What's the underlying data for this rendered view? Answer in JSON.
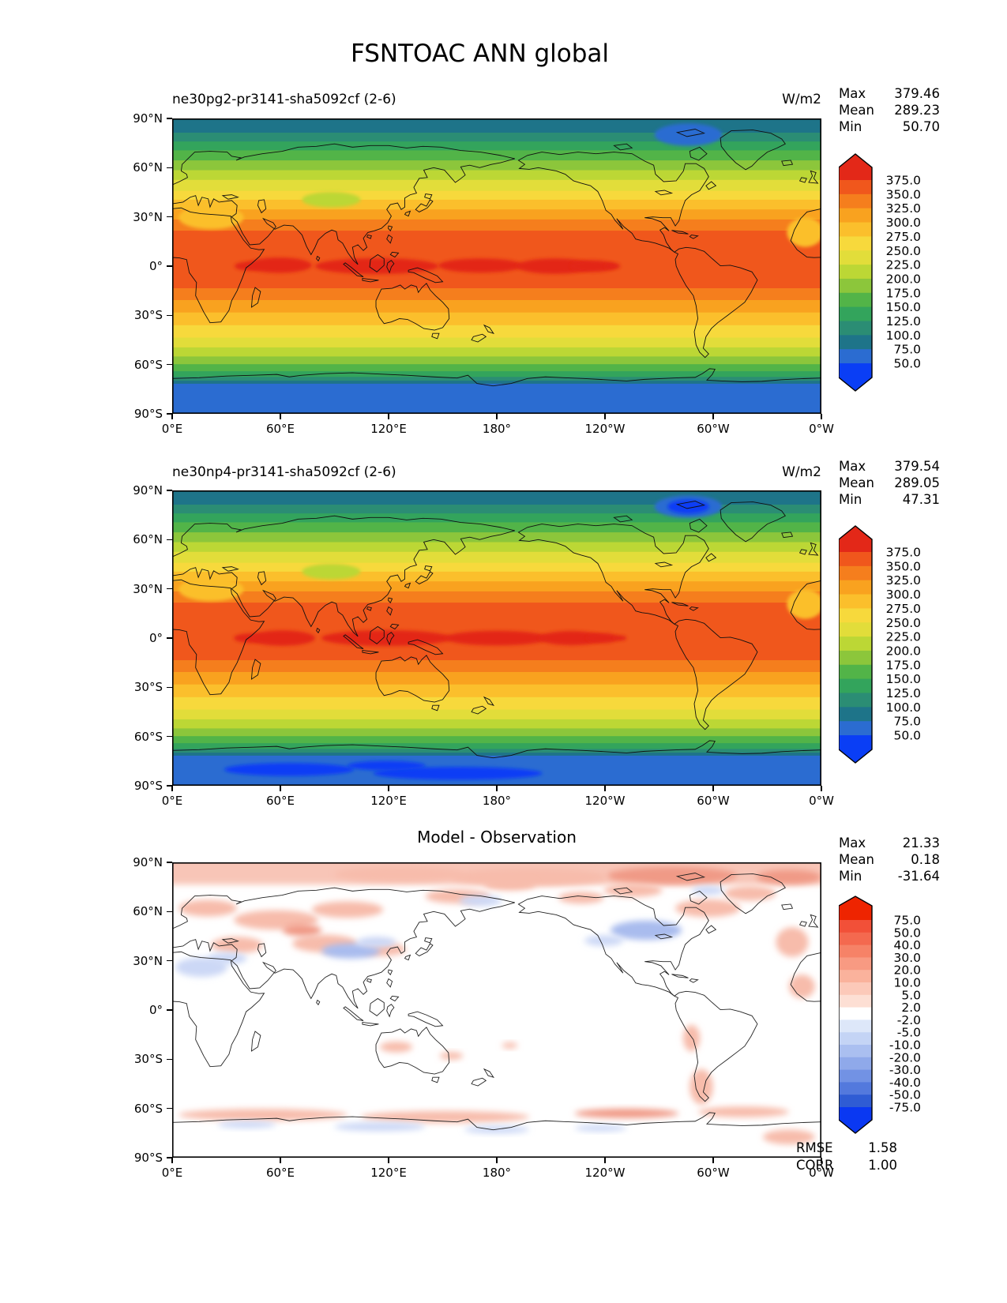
{
  "page_title": "FSNTOAC ANN global",
  "panels": [
    {
      "subtitle": "ne30pg2-pr3141-sha5092cf (2-6)",
      "units": "W/m2",
      "stats": [
        {
          "label": "Max",
          "value": "379.46"
        },
        {
          "label": "Mean",
          "value": "289.23"
        },
        {
          "label": "Min",
          "value": "50.70"
        }
      ]
    },
    {
      "subtitle": "ne30np4-pr3141-sha5092cf (2-6)",
      "units": "W/m2",
      "stats": [
        {
          "label": "Max",
          "value": "379.54"
        },
        {
          "label": "Mean",
          "value": "289.05"
        },
        {
          "label": "Min",
          "value": "47.31"
        }
      ]
    },
    {
      "title": "Model - Observation",
      "stats": [
        {
          "label": "Max",
          "value": "21.33"
        },
        {
          "label": "Mean",
          "value": "0.18"
        },
        {
          "label": "Min",
          "value": "-31.64"
        }
      ],
      "metrics": [
        {
          "label": "RMSE",
          "value": "1.58"
        },
        {
          "label": "CORR",
          "value": "1.00"
        }
      ]
    }
  ],
  "chart_data": {
    "type": "heatmap",
    "description": "Three global lat-lon filled-contour maps of FSNTOAC (net shortwave flux at TOA, clear sky), annual mean: two model cases and their difference versus observation.",
    "variable": "FSNTOAC",
    "season": "ANN",
    "region": "global",
    "units": "W/m2",
    "panel_summaries": [
      {
        "title": "ne30pg2-pr3141-sha5092cf (2-6)",
        "max": 379.46,
        "mean": 289.23,
        "min": 50.7
      },
      {
        "title": "ne30np4-pr3141-sha5092cf (2-6)",
        "max": 379.54,
        "mean": 289.05,
        "min": 47.31
      },
      {
        "title": "Model - Observation",
        "max": 21.33,
        "mean": 0.18,
        "min": -31.64,
        "rmse": 1.58,
        "corr": 1.0
      }
    ],
    "x_axis": {
      "tick_labels": [
        "0°E",
        "60°E",
        "120°E",
        "180°",
        "120°W",
        "60°W",
        "0°W"
      ],
      "range_deg": [
        0,
        360
      ]
    },
    "y_axis": {
      "tick_labels": [
        "90°N",
        "60°N",
        "30°N",
        "0°",
        "30°S",
        "60°S",
        "90°S"
      ],
      "range_deg": [
        90,
        -90
      ]
    },
    "flux_colorbar": {
      "extend": "both",
      "tick_labels": [
        "375.0",
        "350.0",
        "325.0",
        "300.0",
        "275.0",
        "250.0",
        "225.0",
        "200.0",
        "175.0",
        "150.0",
        "125.0",
        "100.0",
        "75.0",
        "50.0"
      ],
      "colors": [
        "#e32818",
        "#f0571c",
        "#f57e1d",
        "#f9a21f",
        "#fbbf2c",
        "#f7d93c",
        "#e2dd3a",
        "#bcd735",
        "#8cc63b",
        "#52b448",
        "#33a45c",
        "#2b8d74",
        "#1e7489",
        "#2b6cd1",
        "#0a3ef5"
      ]
    },
    "diff_colorbar": {
      "extend": "both",
      "tick_labels": [
        "75.0",
        "50.0",
        "40.0",
        "30.0",
        "20.0",
        "10.0",
        "5.0",
        "2.0",
        "-2.0",
        "-5.0",
        "-10.0",
        "-20.0",
        "-30.0",
        "-40.0",
        "-50.0",
        "-75.0"
      ],
      "colors": [
        "#ee2400",
        "#f25038",
        "#f4694f",
        "#f68267",
        "#f89a82",
        "#fab29c",
        "#fcc9b9",
        "#fddfd4",
        "#ffffff",
        "#dde7f9",
        "#c4d4f5",
        "#aabff0",
        "#8fa9ea",
        "#7292e4",
        "#5379dd",
        "#2f5cd4",
        "#0a38f2"
      ]
    },
    "zonal_bands": [
      [
        0.0,
        0.048,
        12
      ],
      [
        0.048,
        0.078,
        11
      ],
      [
        0.078,
        0.108,
        10
      ],
      [
        0.108,
        0.142,
        9
      ],
      [
        0.142,
        0.175,
        8
      ],
      [
        0.175,
        0.208,
        7
      ],
      [
        0.208,
        0.245,
        6
      ],
      [
        0.245,
        0.275,
        5
      ],
      [
        0.275,
        0.308,
        4
      ],
      [
        0.308,
        0.342,
        3
      ],
      [
        0.342,
        0.38,
        2
      ],
      [
        0.38,
        0.575,
        1
      ],
      [
        0.575,
        0.615,
        2
      ],
      [
        0.615,
        0.657,
        3
      ],
      [
        0.657,
        0.7,
        4
      ],
      [
        0.7,
        0.742,
        5
      ],
      [
        0.742,
        0.775,
        6
      ],
      [
        0.775,
        0.806,
        7
      ],
      [
        0.806,
        0.832,
        8
      ],
      [
        0.832,
        0.856,
        9
      ],
      [
        0.856,
        0.875,
        10
      ],
      [
        0.875,
        0.888,
        11
      ],
      [
        0.888,
        0.898,
        12
      ],
      [
        0.898,
        1.0,
        13
      ]
    ],
    "equator_blobs": {
      "p1": [
        [
          0.118,
          0.5,
          0.022,
          0.015
        ],
        [
          0.165,
          0.497,
          0.05,
          0.026
        ],
        [
          0.315,
          0.5,
          0.095,
          0.027
        ],
        [
          0.475,
          0.498,
          0.065,
          0.024
        ],
        [
          0.59,
          0.5,
          0.06,
          0.026
        ],
        [
          0.648,
          0.5,
          0.035,
          0.02
        ],
        [
          0.678,
          0.5,
          0.012,
          0.011
        ]
      ],
      "p2": [
        [
          0.12,
          0.5,
          0.025,
          0.016
        ],
        [
          0.17,
          0.5,
          0.05,
          0.026
        ],
        [
          0.33,
          0.5,
          0.1,
          0.027
        ],
        [
          0.5,
          0.5,
          0.08,
          0.025
        ],
        [
          0.615,
          0.5,
          0.05,
          0.024
        ],
        [
          0.663,
          0.5,
          0.025,
          0.017
        ],
        [
          0.69,
          0.5,
          0.01,
          0.009
        ]
      ]
    },
    "land_tints": [
      [
        0.06,
        0.335,
        0.05,
        0.04,
        4
      ],
      [
        0.975,
        0.385,
        0.028,
        0.05,
        4
      ],
      [
        0.245,
        0.275,
        0.045,
        0.026,
        7
      ]
    ],
    "polar_features": {
      "greenland_low": [
        0.795,
        0.055,
        0.052,
        0.038
      ],
      "greenland_core_p2": [
        0.795,
        0.055,
        0.032,
        0.024
      ],
      "antarctic_bright_p2": [
        [
          0.18,
          0.945,
          0.1,
          0.022
        ],
        [
          0.44,
          0.958,
          0.13,
          0.022
        ],
        [
          0.33,
          0.932,
          0.06,
          0.016
        ]
      ]
    },
    "diff_features": {
      "palette": {
        "pink": "#f7bcab",
        "deep": "#f09a86",
        "blue": "#a9bcee",
        "lblue": "#ccd8f6"
      },
      "arctic_band_frac": [
        0.0,
        0.07
      ],
      "blobs": [
        [
          "deep",
          0.77,
          0.045,
          0.1,
          0.03
        ],
        [
          "deep",
          0.95,
          0.05,
          0.05,
          0.025
        ],
        [
          "pink",
          0.55,
          0.05,
          0.12,
          0.03
        ],
        [
          "pink",
          0.35,
          0.04,
          0.1,
          0.025
        ],
        [
          "pink",
          0.055,
          0.155,
          0.045,
          0.028
        ],
        [
          "pink",
          0.16,
          0.195,
          0.065,
          0.033
        ],
        [
          "pink",
          0.27,
          0.16,
          0.055,
          0.028
        ],
        [
          "pink",
          0.1,
          0.28,
          0.04,
          0.028
        ],
        [
          "pink",
          0.235,
          0.275,
          0.05,
          0.03
        ],
        [
          "pink",
          0.325,
          0.295,
          0.035,
          0.022
        ],
        [
          "deep",
          0.2,
          0.23,
          0.03,
          0.02
        ],
        [
          "pink",
          0.44,
          0.115,
          0.05,
          0.024
        ],
        [
          "pink",
          0.52,
          0.075,
          0.04,
          0.02
        ],
        [
          "pink",
          0.63,
          0.12,
          0.035,
          0.02
        ],
        [
          "pink",
          0.71,
          0.095,
          0.045,
          0.022
        ],
        [
          "pink",
          0.825,
          0.155,
          0.05,
          0.03
        ],
        [
          "pink",
          0.89,
          0.105,
          0.04,
          0.025
        ],
        [
          "pink",
          0.955,
          0.27,
          0.025,
          0.05
        ],
        [
          "pink",
          0.97,
          0.42,
          0.02,
          0.04
        ],
        [
          "blue",
          0.275,
          0.3,
          0.045,
          0.026
        ],
        [
          "lblue",
          0.315,
          0.27,
          0.03,
          0.018
        ],
        [
          "lblue",
          0.045,
          0.355,
          0.04,
          0.033
        ],
        [
          "lblue",
          0.085,
          0.325,
          0.03,
          0.02
        ],
        [
          "blue",
          0.73,
          0.23,
          0.055,
          0.033
        ],
        [
          "lblue",
          0.665,
          0.265,
          0.03,
          0.018
        ],
        [
          "lblue",
          0.475,
          0.13,
          0.033,
          0.018
        ],
        [
          "lblue",
          0.825,
          0.095,
          0.025,
          0.015
        ],
        [
          "pink",
          0.8,
          0.595,
          0.013,
          0.045
        ],
        [
          "pink",
          0.815,
          0.76,
          0.018,
          0.06
        ],
        [
          "pink",
          0.345,
          0.625,
          0.025,
          0.018
        ],
        [
          "pink",
          0.43,
          0.655,
          0.018,
          0.013
        ],
        [
          "pink",
          0.52,
          0.62,
          0.012,
          0.01
        ],
        [
          "pink",
          0.14,
          0.855,
          0.13,
          0.02
        ],
        [
          "pink",
          0.42,
          0.862,
          0.13,
          0.02
        ],
        [
          "deep",
          0.7,
          0.85,
          0.08,
          0.016
        ],
        [
          "pink",
          0.88,
          0.845,
          0.07,
          0.018
        ],
        [
          "lblue",
          0.32,
          0.895,
          0.07,
          0.015
        ],
        [
          "lblue",
          0.5,
          0.905,
          0.05,
          0.013
        ],
        [
          "lblue",
          0.115,
          0.888,
          0.045,
          0.012
        ],
        [
          "lblue",
          0.66,
          0.9,
          0.04,
          0.011
        ],
        [
          "pink",
          0.95,
          0.93,
          0.04,
          0.025
        ]
      ]
    }
  }
}
